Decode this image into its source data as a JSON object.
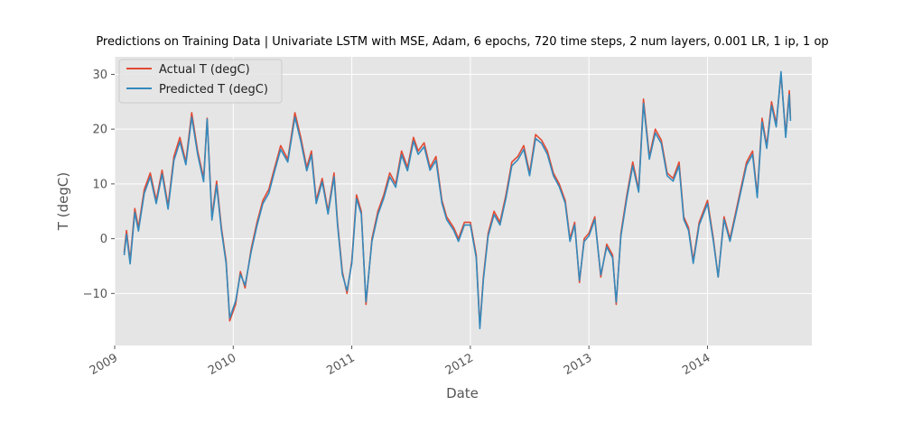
{
  "chart_data": {
    "type": "line",
    "title": "Predictions on Training Data  | Univariate LSTM with MSE, Adam, 6 epochs, 720 time steps, 2 num layers, 0.001 LR, 1 ip, 1 op",
    "xlabel": "Date",
    "ylabel": "T (degC)",
    "x_ticks": [
      "2009",
      "2010",
      "2011",
      "2012",
      "2013",
      "2014"
    ],
    "y_ticks": [
      -10,
      0,
      10,
      20,
      30
    ],
    "xlim": [
      2009.0,
      2014.88
    ],
    "ylim": [
      -19.5,
      33.2
    ],
    "grid": true,
    "legend": "top-left",
    "style": "ggplot",
    "series": [
      {
        "name": "Actual T (degC)",
        "color": "#e24a33",
        "points": [
          [
            2009.08,
            -2.5
          ],
          [
            2009.1,
            1.5
          ],
          [
            2009.13,
            -4.0
          ],
          [
            2009.17,
            5.5
          ],
          [
            2009.2,
            2.0
          ],
          [
            2009.25,
            9.0
          ],
          [
            2009.3,
            12.0
          ],
          [
            2009.35,
            7.0
          ],
          [
            2009.4,
            12.5
          ],
          [
            2009.45,
            6.0
          ],
          [
            2009.5,
            15.0
          ],
          [
            2009.55,
            18.5
          ],
          [
            2009.6,
            14.0
          ],
          [
            2009.65,
            23.0
          ],
          [
            2009.7,
            16.0
          ],
          [
            2009.75,
            11.0
          ],
          [
            2009.78,
            22.0
          ],
          [
            2009.82,
            4.0
          ],
          [
            2009.86,
            10.5
          ],
          [
            2009.9,
            2.0
          ],
          [
            2009.94,
            -4.0
          ],
          [
            2009.97,
            -15.0
          ],
          [
            2010.02,
            -12.0
          ],
          [
            2010.06,
            -6.0
          ],
          [
            2010.1,
            -9.0
          ],
          [
            2010.15,
            -2.0
          ],
          [
            2010.2,
            3.0
          ],
          [
            2010.25,
            7.0
          ],
          [
            2010.3,
            9.0
          ],
          [
            2010.35,
            13.0
          ],
          [
            2010.4,
            17.0
          ],
          [
            2010.46,
            14.5
          ],
          [
            2010.52,
            23.0
          ],
          [
            2010.57,
            18.5
          ],
          [
            2010.62,
            13.0
          ],
          [
            2010.66,
            16.0
          ],
          [
            2010.7,
            7.0
          ],
          [
            2010.75,
            11.0
          ],
          [
            2010.8,
            5.0
          ],
          [
            2010.85,
            12.0
          ],
          [
            2010.88,
            3.0
          ],
          [
            2010.92,
            -6.0
          ],
          [
            2010.96,
            -10.0
          ],
          [
            2011.0,
            -4.0
          ],
          [
            2011.04,
            8.0
          ],
          [
            2011.08,
            5.0
          ],
          [
            2011.12,
            -12.0
          ],
          [
            2011.17,
            0.0
          ],
          [
            2011.22,
            5.0
          ],
          [
            2011.27,
            8.0
          ],
          [
            2011.32,
            12.0
          ],
          [
            2011.37,
            10.0
          ],
          [
            2011.42,
            16.0
          ],
          [
            2011.47,
            13.0
          ],
          [
            2011.52,
            18.5
          ],
          [
            2011.56,
            16.0
          ],
          [
            2011.61,
            17.5
          ],
          [
            2011.66,
            13.0
          ],
          [
            2011.71,
            15.0
          ],
          [
            2011.76,
            7.0
          ],
          [
            2011.8,
            4.0
          ],
          [
            2011.86,
            2.0
          ],
          [
            2011.9,
            0.0
          ],
          [
            2011.95,
            3.0
          ],
          [
            2012.0,
            3.0
          ],
          [
            2012.05,
            -3.0
          ],
          [
            2012.08,
            -16.0
          ],
          [
            2012.11,
            -7.0
          ],
          [
            2012.15,
            1.0
          ],
          [
            2012.2,
            5.0
          ],
          [
            2012.25,
            3.0
          ],
          [
            2012.3,
            8.0
          ],
          [
            2012.35,
            14.0
          ],
          [
            2012.4,
            15.0
          ],
          [
            2012.45,
            17.0
          ],
          [
            2012.5,
            12.0
          ],
          [
            2012.55,
            19.0
          ],
          [
            2012.6,
            18.0
          ],
          [
            2012.65,
            16.0
          ],
          [
            2012.7,
            12.0
          ],
          [
            2012.75,
            10.0
          ],
          [
            2012.8,
            7.0
          ],
          [
            2012.84,
            0.0
          ],
          [
            2012.88,
            3.0
          ],
          [
            2012.92,
            -8.0
          ],
          [
            2012.96,
            0.0
          ],
          [
            2013.0,
            1.0
          ],
          [
            2013.05,
            4.0
          ],
          [
            2013.1,
            -7.0
          ],
          [
            2013.15,
            -1.0
          ],
          [
            2013.2,
            -3.0
          ],
          [
            2013.23,
            -12.0
          ],
          [
            2013.27,
            1.0
          ],
          [
            2013.32,
            8.0
          ],
          [
            2013.37,
            14.0
          ],
          [
            2013.42,
            9.0
          ],
          [
            2013.46,
            25.5
          ],
          [
            2013.51,
            15.0
          ],
          [
            2013.56,
            20.0
          ],
          [
            2013.61,
            18.0
          ],
          [
            2013.66,
            12.0
          ],
          [
            2013.71,
            11.0
          ],
          [
            2013.76,
            14.0
          ],
          [
            2013.8,
            4.0
          ],
          [
            2013.84,
            2.0
          ],
          [
            2013.88,
            -4.0
          ],
          [
            2013.93,
            3.0
          ],
          [
            2014.0,
            7.0
          ],
          [
            2014.05,
            0.0
          ],
          [
            2014.09,
            -7.0
          ],
          [
            2014.14,
            4.0
          ],
          [
            2014.19,
            0.0
          ],
          [
            2014.24,
            5.0
          ],
          [
            2014.29,
            10.0
          ],
          [
            2014.33,
            14.0
          ],
          [
            2014.38,
            16.0
          ],
          [
            2014.42,
            8.0
          ],
          [
            2014.46,
            22.0
          ],
          [
            2014.5,
            17.0
          ],
          [
            2014.54,
            25.0
          ],
          [
            2014.58,
            21.0
          ],
          [
            2014.62,
            30.0
          ],
          [
            2014.66,
            19.0
          ],
          [
            2014.69,
            27.0
          ],
          [
            2014.7,
            22.0
          ]
        ]
      },
      {
        "name": "Predicted T (degC)",
        "color": "#348abd",
        "points": [
          [
            2009.08,
            -3.0
          ],
          [
            2009.1,
            0.8
          ],
          [
            2009.13,
            -4.6
          ],
          [
            2009.17,
            4.8
          ],
          [
            2009.2,
            1.4
          ],
          [
            2009.25,
            8.3
          ],
          [
            2009.3,
            11.3
          ],
          [
            2009.35,
            6.4
          ],
          [
            2009.4,
            11.8
          ],
          [
            2009.45,
            5.4
          ],
          [
            2009.5,
            14.3
          ],
          [
            2009.55,
            17.7
          ],
          [
            2009.6,
            13.5
          ],
          [
            2009.65,
            22.2
          ],
          [
            2009.7,
            15.4
          ],
          [
            2009.75,
            10.4
          ],
          [
            2009.78,
            21.8
          ],
          [
            2009.82,
            3.4
          ],
          [
            2009.86,
            9.8
          ],
          [
            2009.9,
            1.5
          ],
          [
            2009.94,
            -4.5
          ],
          [
            2009.97,
            -14.5
          ],
          [
            2010.02,
            -11.4
          ],
          [
            2010.06,
            -6.5
          ],
          [
            2010.1,
            -8.5
          ],
          [
            2010.15,
            -2.5
          ],
          [
            2010.2,
            2.4
          ],
          [
            2010.25,
            6.4
          ],
          [
            2010.3,
            8.3
          ],
          [
            2010.35,
            12.4
          ],
          [
            2010.4,
            16.3
          ],
          [
            2010.46,
            14.0
          ],
          [
            2010.52,
            22.2
          ],
          [
            2010.57,
            17.8
          ],
          [
            2010.62,
            12.4
          ],
          [
            2010.66,
            15.3
          ],
          [
            2010.7,
            6.4
          ],
          [
            2010.75,
            10.4
          ],
          [
            2010.8,
            4.5
          ],
          [
            2010.85,
            11.3
          ],
          [
            2010.88,
            2.5
          ],
          [
            2010.92,
            -6.5
          ],
          [
            2010.96,
            -9.5
          ],
          [
            2011.0,
            -4.5
          ],
          [
            2011.04,
            7.3
          ],
          [
            2011.08,
            4.5
          ],
          [
            2011.12,
            -11.5
          ],
          [
            2011.17,
            -0.5
          ],
          [
            2011.22,
            4.4
          ],
          [
            2011.27,
            7.4
          ],
          [
            2011.32,
            11.3
          ],
          [
            2011.37,
            9.4
          ],
          [
            2011.42,
            15.3
          ],
          [
            2011.47,
            12.4
          ],
          [
            2011.52,
            17.8
          ],
          [
            2011.56,
            15.4
          ],
          [
            2011.61,
            16.8
          ],
          [
            2011.66,
            12.5
          ],
          [
            2011.71,
            14.3
          ],
          [
            2011.76,
            6.5
          ],
          [
            2011.8,
            3.5
          ],
          [
            2011.86,
            1.5
          ],
          [
            2011.9,
            -0.5
          ],
          [
            2011.95,
            2.5
          ],
          [
            2012.0,
            2.5
          ],
          [
            2012.05,
            -3.5
          ],
          [
            2012.08,
            -16.4
          ],
          [
            2012.11,
            -7.5
          ],
          [
            2012.15,
            0.5
          ],
          [
            2012.2,
            4.4
          ],
          [
            2012.25,
            2.5
          ],
          [
            2012.3,
            7.4
          ],
          [
            2012.35,
            13.3
          ],
          [
            2012.4,
            14.4
          ],
          [
            2012.45,
            16.3
          ],
          [
            2012.5,
            11.5
          ],
          [
            2012.55,
            18.3
          ],
          [
            2012.6,
            17.4
          ],
          [
            2012.65,
            15.4
          ],
          [
            2012.7,
            11.5
          ],
          [
            2012.75,
            9.5
          ],
          [
            2012.8,
            6.5
          ],
          [
            2012.84,
            -0.5
          ],
          [
            2012.88,
            2.5
          ],
          [
            2012.92,
            -7.6
          ],
          [
            2012.96,
            -0.5
          ],
          [
            2013.0,
            0.5
          ],
          [
            2013.05,
            3.5
          ],
          [
            2013.1,
            -6.6
          ],
          [
            2013.15,
            -1.5
          ],
          [
            2013.2,
            -3.5
          ],
          [
            2013.23,
            -11.6
          ],
          [
            2013.27,
            0.5
          ],
          [
            2013.32,
            7.4
          ],
          [
            2013.37,
            13.3
          ],
          [
            2013.42,
            8.5
          ],
          [
            2013.46,
            24.7
          ],
          [
            2013.51,
            14.5
          ],
          [
            2013.56,
            19.3
          ],
          [
            2013.61,
            17.4
          ],
          [
            2013.66,
            11.5
          ],
          [
            2013.71,
            10.5
          ],
          [
            2013.76,
            13.3
          ],
          [
            2013.8,
            3.5
          ],
          [
            2013.84,
            1.5
          ],
          [
            2013.88,
            -4.5
          ],
          [
            2013.93,
            2.5
          ],
          [
            2014.0,
            6.4
          ],
          [
            2014.05,
            -0.5
          ],
          [
            2014.09,
            -7.0
          ],
          [
            2014.14,
            3.5
          ],
          [
            2014.19,
            -0.5
          ],
          [
            2014.24,
            4.5
          ],
          [
            2014.29,
            9.4
          ],
          [
            2014.33,
            13.4
          ],
          [
            2014.38,
            15.4
          ],
          [
            2014.42,
            7.5
          ],
          [
            2014.46,
            21.3
          ],
          [
            2014.5,
            16.5
          ],
          [
            2014.54,
            24.3
          ],
          [
            2014.58,
            20.4
          ],
          [
            2014.62,
            30.5
          ],
          [
            2014.66,
            18.5
          ],
          [
            2014.69,
            26.3
          ],
          [
            2014.7,
            21.5
          ]
        ]
      }
    ]
  }
}
